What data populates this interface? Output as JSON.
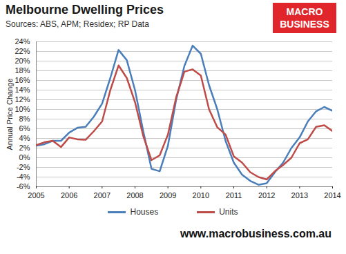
{
  "chart_data": {
    "type": "line",
    "title": "Melbourne Dwelling Prices",
    "subtitle": "Sources: ABS, APM; Residex; RP Data",
    "logo_text": [
      "MACRO",
      "BUSINESS"
    ],
    "footer": "www.macrobusiness.com.au",
    "y_label": "Annual Price Change",
    "x": [
      2005,
      2005.25,
      2005.5,
      2005.75,
      2006,
      2006.25,
      2006.5,
      2006.75,
      2007,
      2007.25,
      2007.5,
      2007.75,
      2008,
      2008.25,
      2008.5,
      2008.75,
      2009,
      2009.25,
      2009.5,
      2009.75,
      2010,
      2010.25,
      2010.5,
      2010.75,
      2011,
      2011.25,
      2011.5,
      2011.75,
      2012,
      2012.25,
      2012.5,
      2012.75,
      2013,
      2013.25,
      2013.5,
      2013.75,
      2014
    ],
    "series": [
      {
        "name": "Houses",
        "color": "#4a7ebb",
        "values": [
          2.5,
          2.8,
          3.5,
          3.5,
          5.2,
          6.2,
          6.4,
          8.5,
          11.2,
          16.5,
          22.3,
          20.2,
          14,
          5.5,
          -2.3,
          -2.8,
          2.5,
          12,
          19,
          23.2,
          21.5,
          15,
          10,
          3.5,
          -1,
          -3.5,
          -4.8,
          -5.6,
          -5.3,
          -3,
          -1,
          2,
          4.2,
          7.5,
          9.6,
          10.5,
          9.7
        ]
      },
      {
        "name": "Units",
        "color": "#be4b48",
        "values": [
          2.6,
          3.2,
          3.5,
          2.2,
          4.2,
          3.8,
          3.7,
          5.5,
          7.5,
          14,
          19.1,
          16.5,
          11.5,
          4.5,
          -0.5,
          0.5,
          4.8,
          12.5,
          17.8,
          18.3,
          17,
          10,
          6.3,
          4.8,
          0.3,
          -1,
          -3,
          -4,
          -4.5,
          -2.8,
          -1.5,
          0,
          3,
          3.8,
          6.4,
          6.7,
          5.5
        ]
      }
    ],
    "xlim": [
      2005,
      2014
    ],
    "xticks": [
      2005,
      2006,
      2007,
      2008,
      2009,
      2010,
      2011,
      2012,
      2013,
      2014
    ],
    "ylim": [
      -6,
      24
    ],
    "yticks": [
      {
        "value": -6,
        "label": "-6%"
      },
      {
        "value": -4,
        "label": "-4%"
      },
      {
        "value": -2,
        "label": "-2%"
      },
      {
        "value": 0,
        "label": "0%"
      },
      {
        "value": 2,
        "label": "2%"
      },
      {
        "value": 4,
        "label": "4%"
      },
      {
        "value": 6,
        "label": "6%"
      },
      {
        "value": 8,
        "label": "8%"
      },
      {
        "value": 10,
        "label": "10%"
      },
      {
        "value": 12,
        "label": "12%"
      },
      {
        "value": 14,
        "label": "14%"
      },
      {
        "value": 16,
        "label": "16%"
      },
      {
        "value": 18,
        "label": "18%"
      },
      {
        "value": 20,
        "label": "20%"
      },
      {
        "value": 22,
        "label": "22%"
      },
      {
        "value": 24,
        "label": "24%"
      }
    ],
    "grid": true,
    "legend": "bottom"
  }
}
